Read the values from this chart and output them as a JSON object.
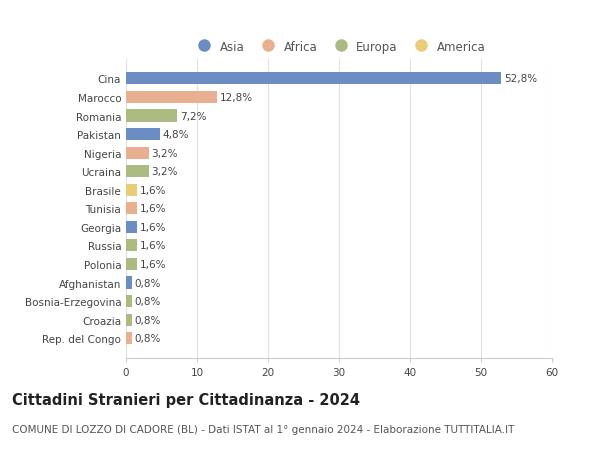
{
  "countries": [
    "Cina",
    "Marocco",
    "Romania",
    "Pakistan",
    "Nigeria",
    "Ucraina",
    "Brasile",
    "Tunisia",
    "Georgia",
    "Russia",
    "Polonia",
    "Afghanistan",
    "Bosnia-Erzegovina",
    "Croazia",
    "Rep. del Congo"
  ],
  "values": [
    52.8,
    12.8,
    7.2,
    4.8,
    3.2,
    3.2,
    1.6,
    1.6,
    1.6,
    1.6,
    1.6,
    0.8,
    0.8,
    0.8,
    0.8
  ],
  "labels": [
    "52,8%",
    "12,8%",
    "7,2%",
    "4,8%",
    "3,2%",
    "3,2%",
    "1,6%",
    "1,6%",
    "1,6%",
    "1,6%",
    "1,6%",
    "0,8%",
    "0,8%",
    "0,8%",
    "0,8%"
  ],
  "continents": [
    "Asia",
    "Africa",
    "Europa",
    "Asia",
    "Africa",
    "Europa",
    "America",
    "Africa",
    "Asia",
    "Europa",
    "Europa",
    "Asia",
    "Europa",
    "Europa",
    "Africa"
  ],
  "continent_colors": {
    "Asia": "#6b8dc4",
    "Africa": "#e8b090",
    "Europa": "#aaba80",
    "America": "#e8cc78"
  },
  "legend_order": [
    "Asia",
    "Africa",
    "Europa",
    "America"
  ],
  "title": "Cittadini Stranieri per Cittadinanza - 2024",
  "subtitle": "COMUNE DI LOZZO DI CADORE (BL) - Dati ISTAT al 1° gennaio 2024 - Elaborazione TUTTITALIA.IT",
  "xlim": [
    0,
    60
  ],
  "xticks": [
    0,
    10,
    20,
    30,
    40,
    50,
    60
  ],
  "background_color": "#ffffff",
  "grid_color": "#e0e0e0",
  "bar_height": 0.65,
  "label_fontsize": 7.5,
  "title_fontsize": 10.5,
  "subtitle_fontsize": 7.5,
  "tick_fontsize": 7.5,
  "legend_fontsize": 8.5
}
